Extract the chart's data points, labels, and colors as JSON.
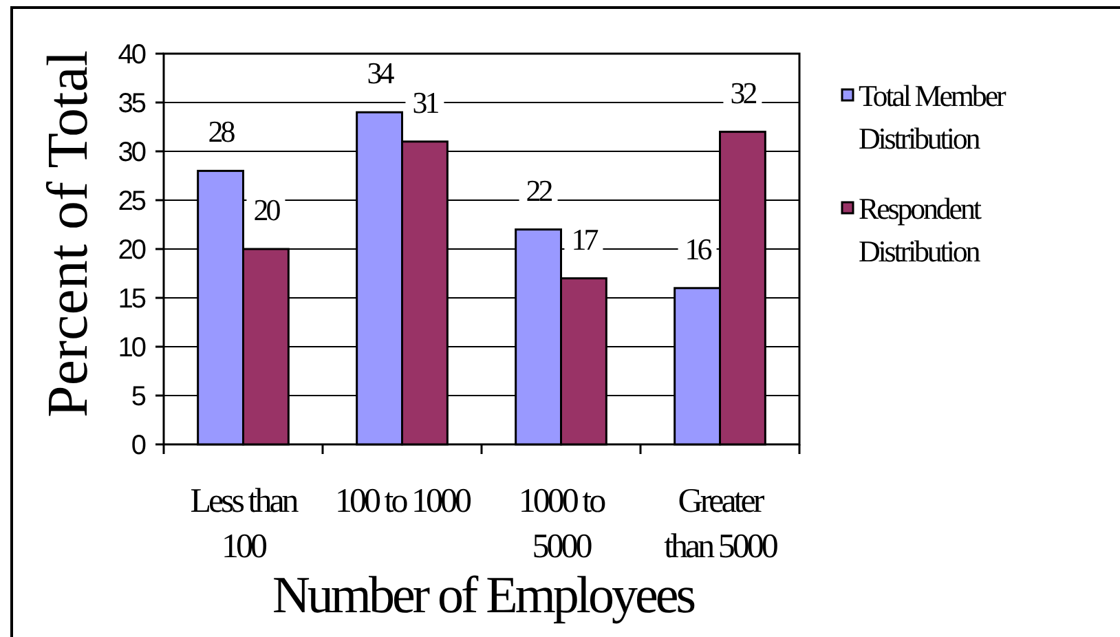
{
  "chart_data": {
    "type": "bar",
    "xlabel": "Number of Employees",
    "ylabel": "Percent of Total",
    "categories": [
      "Less than 100",
      "100 to 1000",
      "1000 to 5000",
      "Greater than 5000"
    ],
    "series": [
      {
        "name": "Total Member Distribution",
        "color": "#9999ff",
        "values": [
          28,
          34,
          22,
          16
        ]
      },
      {
        "name": "Respondent Distribution",
        "color": "#993366",
        "values": [
          20,
          31,
          17,
          32
        ]
      }
    ],
    "ylim": [
      0,
      40
    ],
    "yticks": [
      0,
      5,
      10,
      15,
      20,
      25,
      30,
      35,
      40
    ],
    "grid": "y",
    "legend": "right",
    "data_labels": true
  }
}
